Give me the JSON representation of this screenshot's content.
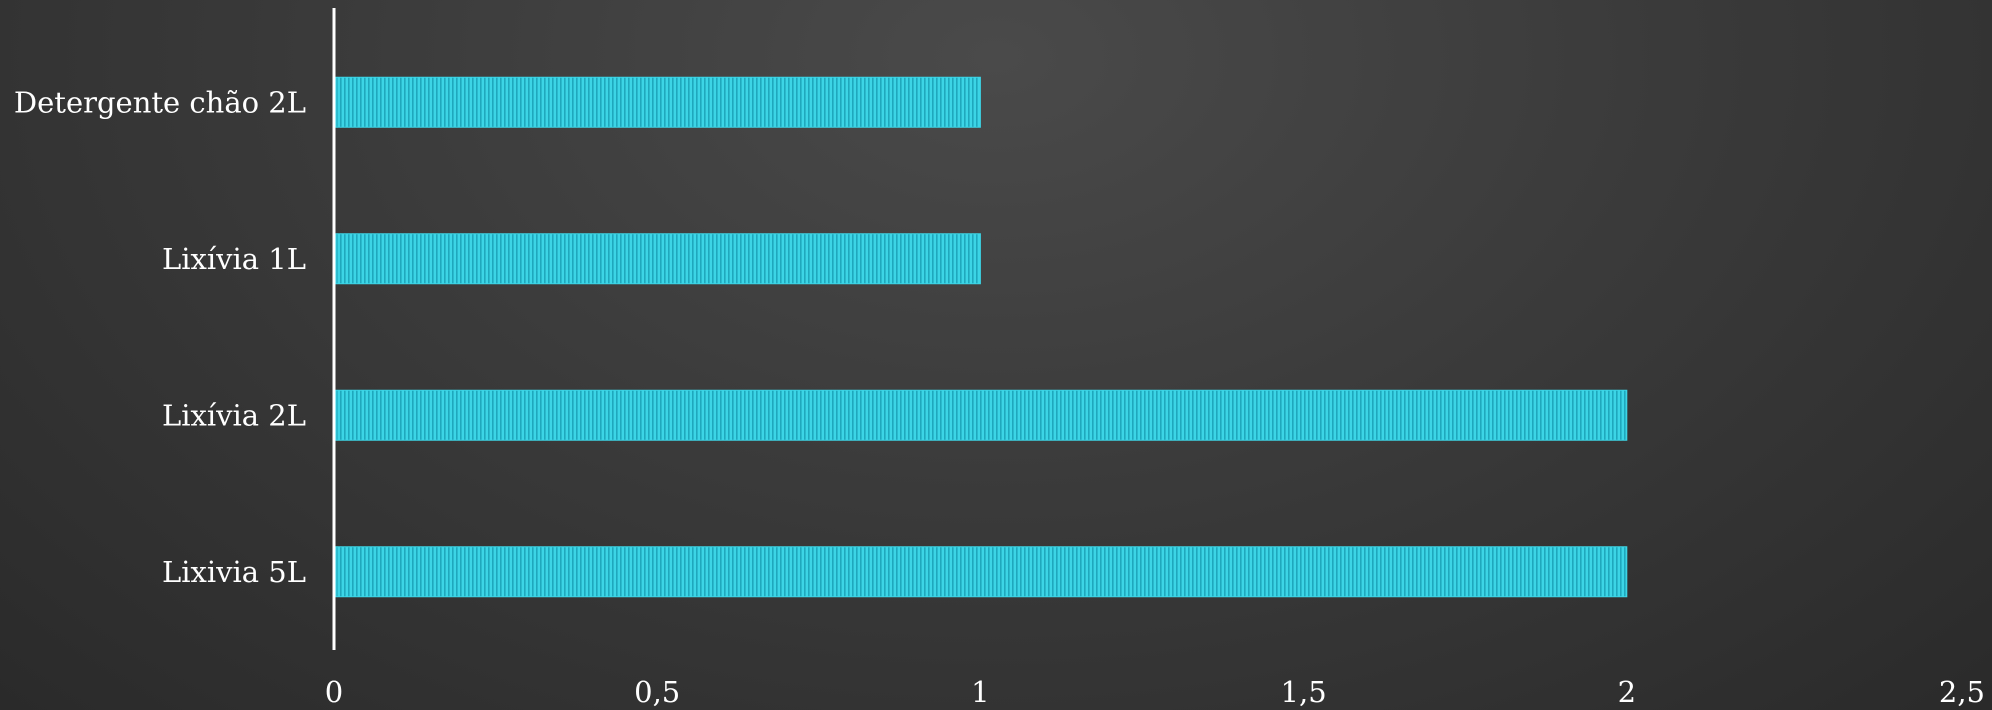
{
  "chart_data": {
    "type": "bar",
    "orientation": "horizontal",
    "categories": [
      "Detergente chão 2L",
      "Lixívia 1L",
      "Lixívia 2L",
      "Lixivia 5L"
    ],
    "values": [
      1,
      1,
      2,
      2
    ],
    "xlim": [
      0,
      2.5
    ],
    "x_ticks": [
      0,
      0.5,
      1,
      1.5,
      2,
      2.5
    ],
    "x_tick_labels": [
      "0",
      "0,5",
      "1",
      "1,5",
      "2",
      "2,5"
    ],
    "title": "",
    "xlabel": "",
    "ylabel": "",
    "grid": false,
    "legend": "none",
    "bar_color": "#3cd5e6",
    "bar_stripe_color": "#1fa8bd"
  }
}
